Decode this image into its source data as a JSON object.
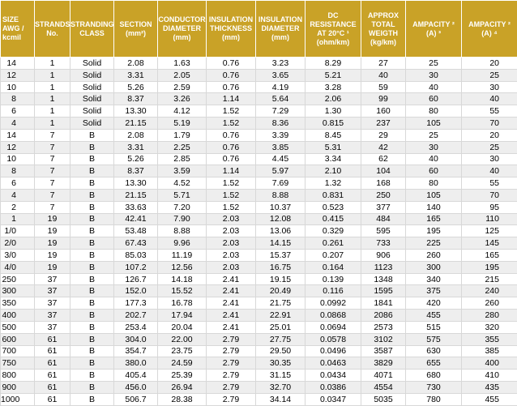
{
  "accent_color": "#c9a227",
  "headers": [
    {
      "lines": [
        "SIZE",
        "AWG /",
        "kcmil"
      ]
    },
    {
      "lines": [
        "STRANDS",
        "No."
      ]
    },
    {
      "lines": [
        "STRANDING",
        "CLASS"
      ]
    },
    {
      "lines": [
        "SECTION",
        "(mm²)"
      ]
    },
    {
      "lines": [
        "CONDUCTOR",
        "DIAMETER",
        "(mm)"
      ]
    },
    {
      "lines": [
        "INSULATION",
        "THICKNESS",
        "(mm)"
      ]
    },
    {
      "lines": [
        "INSULATION",
        "DIAMETER",
        "(mm)"
      ]
    },
    {
      "lines": [
        "DC",
        "RESISTANCE",
        "AT 20°C ¹",
        "(ohm/km)"
      ]
    },
    {
      "lines": [
        "APPROX",
        "TOTAL",
        "WEIGTH",
        "(kg/km)"
      ]
    },
    {
      "lines": [
        "AMPACITY ²",
        "(A) ³"
      ]
    },
    {
      "lines": [
        "AMPACITY ²",
        "(A) ⁴"
      ]
    }
  ],
  "rows": [
    [
      "14",
      "1",
      "Solid",
      "2.08",
      "1.63",
      "0.76",
      "3.23",
      "8.29",
      "27",
      "25",
      "20"
    ],
    [
      "12",
      "1",
      "Solid",
      "3.31",
      "2.05",
      "0.76",
      "3.65",
      "5.21",
      "40",
      "30",
      "25"
    ],
    [
      "10",
      "1",
      "Solid",
      "5.26",
      "2.59",
      "0.76",
      "4.19",
      "3.28",
      "59",
      "40",
      "30"
    ],
    [
      "8",
      "1",
      "Solid",
      "8.37",
      "3.26",
      "1.14",
      "5.64",
      "2.06",
      "99",
      "60",
      "40"
    ],
    [
      "6",
      "1",
      "Solid",
      "13.30",
      "4.12",
      "1.52",
      "7.29",
      "1.30",
      "160",
      "80",
      "55"
    ],
    [
      "4",
      "1",
      "Solid",
      "21.15",
      "5.19",
      "1.52",
      "8.36",
      "0.815",
      "237",
      "105",
      "70"
    ],
    [
      "14",
      "7",
      "B",
      "2.08",
      "1.79",
      "0.76",
      "3.39",
      "8.45",
      "29",
      "25",
      "20"
    ],
    [
      "12",
      "7",
      "B",
      "3.31",
      "2.25",
      "0.76",
      "3.85",
      "5.31",
      "42",
      "30",
      "25"
    ],
    [
      "10",
      "7",
      "B",
      "5.26",
      "2.85",
      "0.76",
      "4.45",
      "3.34",
      "62",
      "40",
      "30"
    ],
    [
      "8",
      "7",
      "B",
      "8.37",
      "3.59",
      "1.14",
      "5.97",
      "2.10",
      "104",
      "60",
      "40"
    ],
    [
      "6",
      "7",
      "B",
      "13.30",
      "4.52",
      "1.52",
      "7.69",
      "1.32",
      "168",
      "80",
      "55"
    ],
    [
      "4",
      "7",
      "B",
      "21.15",
      "5.71",
      "1.52",
      "8.88",
      "0.831",
      "250",
      "105",
      "70"
    ],
    [
      "2",
      "7",
      "B",
      "33.63",
      "7.20",
      "1.52",
      "10.37",
      "0.523",
      "377",
      "140",
      "95"
    ],
    [
      "1",
      "19",
      "B",
      "42.41",
      "7.90",
      "2.03",
      "12.08",
      "0.415",
      "484",
      "165",
      "110"
    ],
    [
      "1/0",
      "19",
      "B",
      "53.48",
      "8.88",
      "2.03",
      "13.06",
      "0.329",
      "595",
      "195",
      "125"
    ],
    [
      "2/0",
      "19",
      "B",
      "67.43",
      "9.96",
      "2.03",
      "14.15",
      "0.261",
      "733",
      "225",
      "145"
    ],
    [
      "3/0",
      "19",
      "B",
      "85.03",
      "11.19",
      "2.03",
      "15.37",
      "0.207",
      "906",
      "260",
      "165"
    ],
    [
      "4/0",
      "19",
      "B",
      "107.2",
      "12.56",
      "2.03",
      "16.75",
      "0.164",
      "1123",
      "300",
      "195"
    ],
    [
      "250",
      "37",
      "B",
      "126.7",
      "14.18",
      "2.41",
      "19.15",
      "0.139",
      "1348",
      "340",
      "215"
    ],
    [
      "300",
      "37",
      "B",
      "152.0",
      "15.52",
      "2.41",
      "20.49",
      "0.116",
      "1595",
      "375",
      "240"
    ],
    [
      "350",
      "37",
      "B",
      "177.3",
      "16.78",
      "2.41",
      "21.75",
      "0.0992",
      "1841",
      "420",
      "260"
    ],
    [
      "400",
      "37",
      "B",
      "202.7",
      "17.94",
      "2.41",
      "22.91",
      "0.0868",
      "2086",
      "455",
      "280"
    ],
    [
      "500",
      "37",
      "B",
      "253.4",
      "20.04",
      "2.41",
      "25.01",
      "0.0694",
      "2573",
      "515",
      "320"
    ],
    [
      "600",
      "61",
      "B",
      "304.0",
      "22.00",
      "2.79",
      "27.75",
      "0.0578",
      "3102",
      "575",
      "355"
    ],
    [
      "700",
      "61",
      "B",
      "354.7",
      "23.75",
      "2.79",
      "29.50",
      "0.0496",
      "3587",
      "630",
      "385"
    ],
    [
      "750",
      "61",
      "B",
      "380.0",
      "24.59",
      "2.79",
      "30.35",
      "0.0463",
      "3829",
      "655",
      "400"
    ],
    [
      "800",
      "61",
      "B",
      "405.4",
      "25.39",
      "2.79",
      "31.15",
      "0.0434",
      "4071",
      "680",
      "410"
    ],
    [
      "900",
      "61",
      "B",
      "456.0",
      "26.94",
      "2.79",
      "32.70",
      "0.0386",
      "4554",
      "730",
      "435"
    ],
    [
      "1000",
      "61",
      "B",
      "506.7",
      "28.38",
      "2.79",
      "34.14",
      "0.0347",
      "5035",
      "780",
      "455"
    ]
  ]
}
